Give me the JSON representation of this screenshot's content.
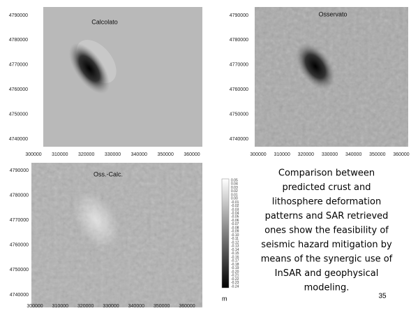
{
  "panels": [
    {
      "title": "Calcolato",
      "xticks": [
        "300000",
        "310000",
        "320000",
        "330000",
        "340000",
        "350000",
        "360000"
      ],
      "yticks": [
        "4790000",
        "4780000",
        "4770000",
        "4760000",
        "4750000",
        "4740000"
      ]
    },
    {
      "title": "Osservato",
      "xticks": [
        "300000",
        "310000",
        "320000",
        "330000",
        "340000",
        "350000",
        "360000"
      ],
      "yticks": [
        "4790000",
        "4780000",
        "4770000",
        "4760000",
        "4750000",
        "4740000"
      ]
    },
    {
      "title": "Oss.-Calc.",
      "xticks": [
        "300000",
        "310000",
        "320000",
        "330000",
        "340000",
        "350000",
        "360000"
      ],
      "yticks": [
        "4790000",
        "4780000",
        "4770000",
        "4760000",
        "4750000",
        "4740000"
      ]
    }
  ],
  "colorbar": {
    "labels": [
      "0.05",
      "0.04",
      "0.03",
      "0.02",
      "0.01",
      "0.00",
      "-0.01",
      "-0.02",
      "-0.03",
      "-0.04",
      "-0.05",
      "-0.06",
      "-0.07",
      "-0.08",
      "-0.09",
      "-0.10",
      "-0.11",
      "-0.12",
      "-0.13",
      "-0.14",
      "-0.15",
      "-0.16",
      "-0.17",
      "-0.18",
      "-0.19",
      "-0.20",
      "-0.21",
      "-0.22",
      "-0.23",
      "-0.24"
    ],
    "unit": "m"
  },
  "text": {
    "lines": [
      "Comparison between",
      "predicted crust and",
      "lithosphere deformation",
      "patterns and SAR retrieved",
      "ones show the feasibility of",
      "seismic hazard mitigation by",
      "means of the synergic use of",
      "InSAR and geophysical",
      "modeling."
    ]
  },
  "page_number": "35"
}
